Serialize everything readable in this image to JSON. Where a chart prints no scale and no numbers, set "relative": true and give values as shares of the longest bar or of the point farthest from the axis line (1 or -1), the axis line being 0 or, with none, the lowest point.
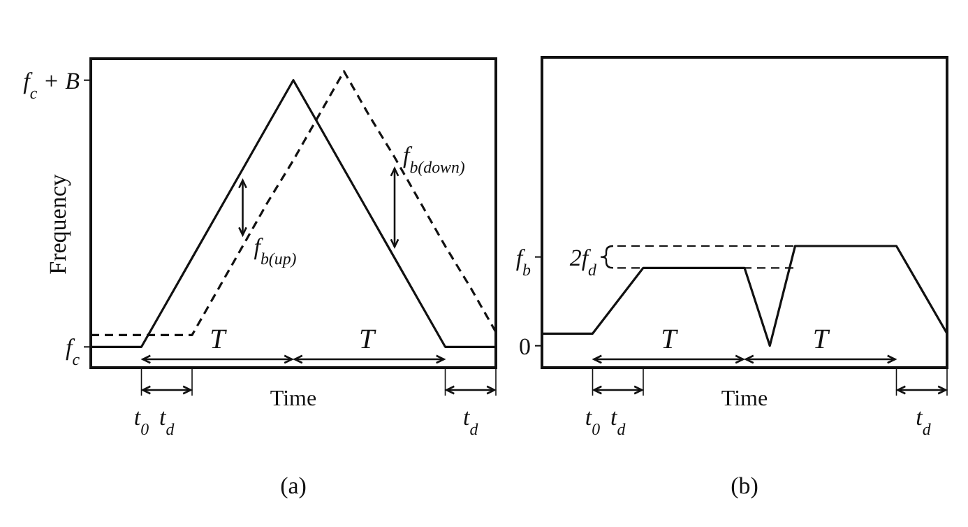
{
  "chart_data": [
    {
      "type": "line",
      "relative": true,
      "ylabel": "Frequency",
      "xlabel": "Time",
      "categories": [
        null,
        null,
        null,
        null,
        null,
        null,
        null,
        null,
        null,
        null,
        null,
        null,
        null,
        null,
        null,
        null,
        null
      ],
      "marker": "none",
      "series": [
        {
          "color": "#111111",
          "line_style": "solid",
          "values": [
            0.07,
            0.07,
            0.07,
            0.22,
            0.37,
            0.52,
            0.67,
            0.82,
            0.97,
            0.82,
            0.67,
            0.52,
            0.37,
            0.22,
            0.07,
            0.07,
            0.07
          ]
        },
        {
          "color": "#111111",
          "line_style": "dashed",
          "values": [
            0.11,
            0.11,
            0.11,
            0.11,
            0.11,
            0.26,
            0.41,
            0.56,
            0.7,
            0.85,
            1,
            0.85,
            0.71,
            0.56,
            0.41,
            0.27,
            0.12
          ]
        }
      ],
      "annotations": [
        "f$_{c}$",
        "f$_{c}$ + B",
        "f$_{b(up)}$",
        "f$_{b(down)}$",
        "T",
        "T",
        "t$_{0}$",
        "t$_{d}$",
        "t$_{d}$",
        "(a)"
      ]
    },
    {
      "type": "line",
      "relative": true,
      "xlabel": "Time",
      "categories": [
        null,
        null,
        null,
        null,
        null,
        null,
        null,
        null,
        null,
        null,
        null,
        null,
        null,
        null,
        null,
        null,
        null
      ],
      "marker": "none",
      "series": [
        {
          "color": "#111111",
          "line_style": "solid",
          "values": [
            0.28,
            0.28,
            0.28,
            0.55,
            0.82,
            0.82,
            0.82,
            0.82,
            0.82,
            0.18,
            1,
            1,
            1,
            1,
            1,
            0.64,
            0.28
          ]
        }
      ],
      "annotations": [
        "0",
        "f$_{b}$",
        "2f$_{d}$",
        "T",
        "T",
        "t$_{0}$",
        "t$_{d}$",
        "t$_{d}$",
        "(b)"
      ]
    }
  ]
}
